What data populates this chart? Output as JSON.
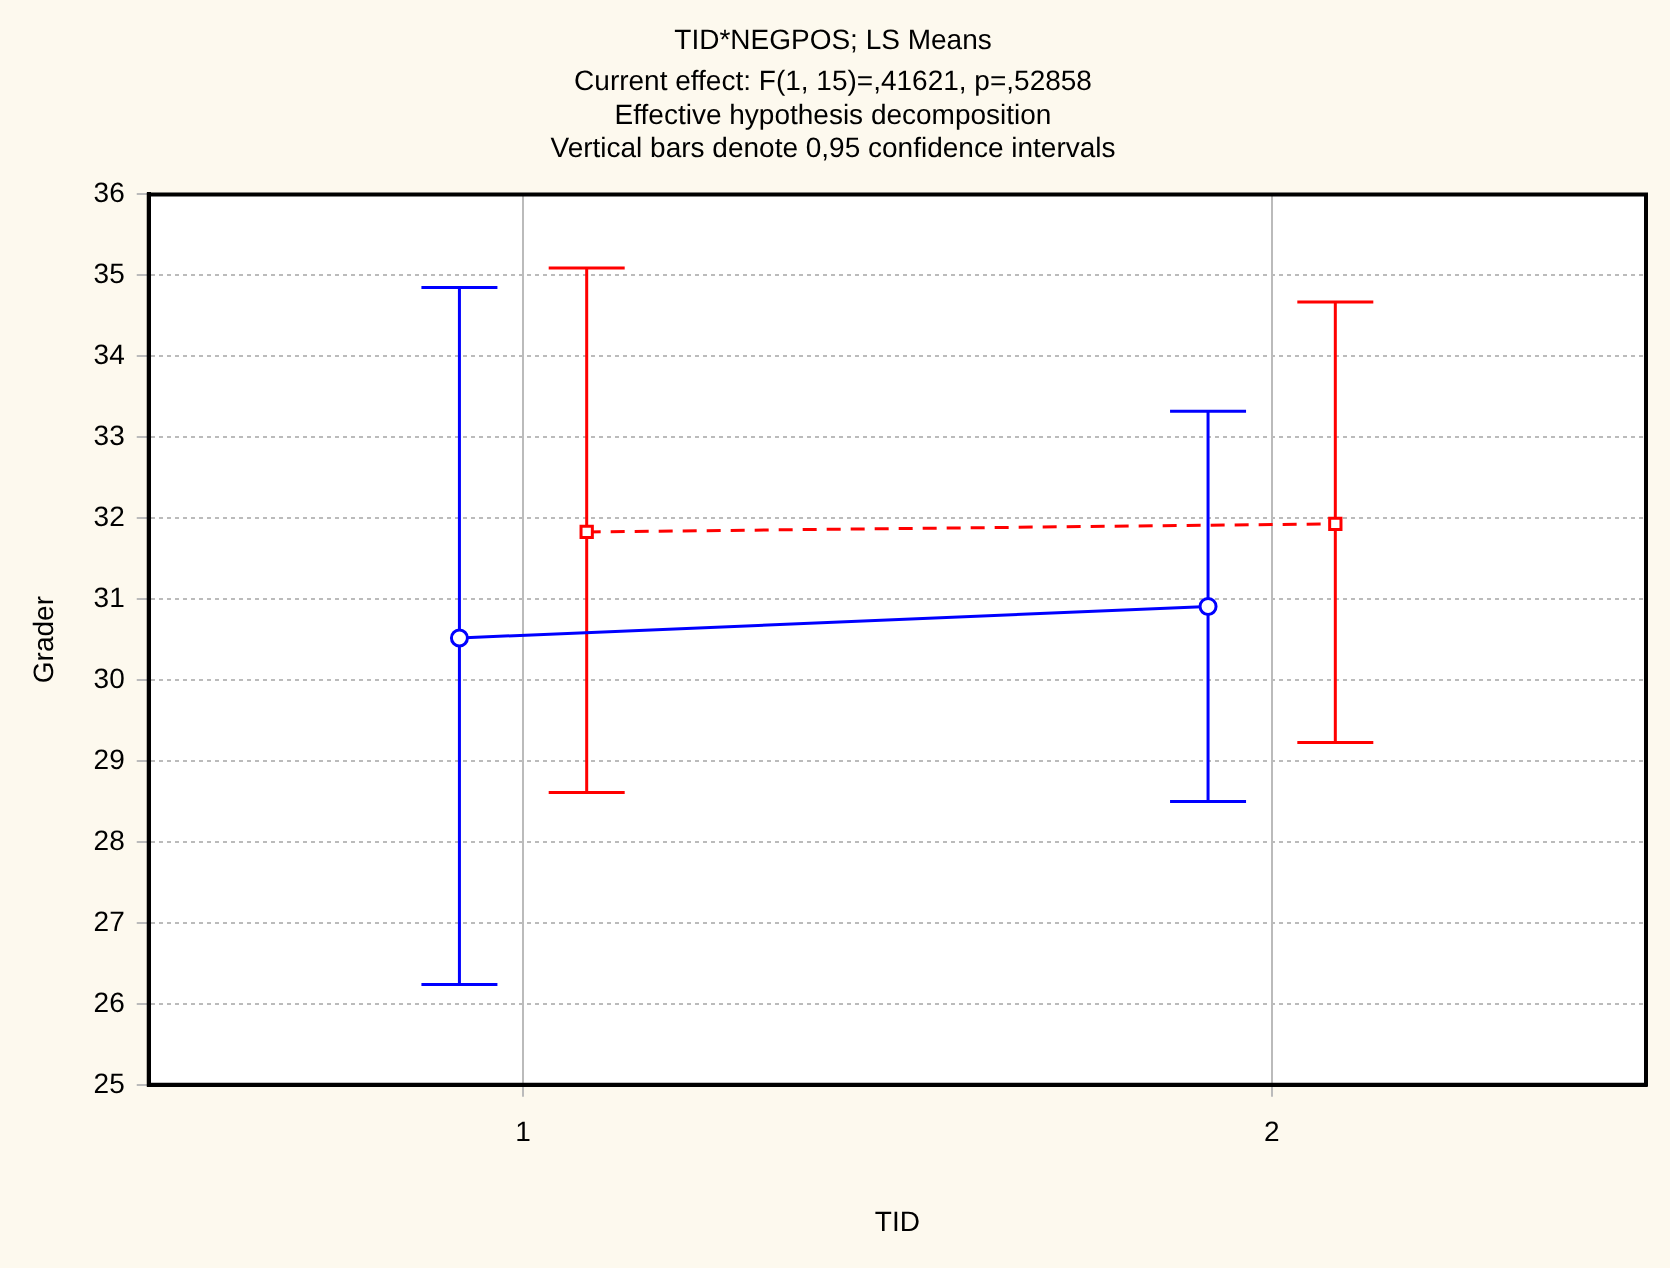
{
  "chart_data": {
    "type": "line",
    "title": "TID*NEGPOS; LS Means",
    "subtitle": "Current effect: F(1, 15)=,41621, p=,52858",
    "annotations": [
      "Effective hypothesis decomposition",
      "Vertical bars denote 0,95 confidence intervals"
    ],
    "xlabel": "TID",
    "ylabel": "Grader",
    "categories": [
      "1",
      "2"
    ],
    "ylim": [
      25,
      36
    ],
    "yticks": [
      25,
      26,
      27,
      28,
      29,
      30,
      31,
      32,
      33,
      34,
      35,
      36
    ],
    "grid": true,
    "legend": false,
    "series": [
      {
        "color": "#0000ff",
        "marker": "circle",
        "line_style": "solid",
        "values": [
          30.52,
          30.91
        ],
        "errors": [
          [
            26.24,
            34.85
          ],
          [
            28.5,
            33.32
          ]
        ]
      },
      {
        "color": "#ff0000",
        "marker": "square",
        "line_style": "dashed",
        "values": [
          31.83,
          31.93
        ],
        "errors": [
          [
            28.61,
            35.09
          ],
          [
            29.23,
            34.67
          ]
        ]
      }
    ]
  }
}
